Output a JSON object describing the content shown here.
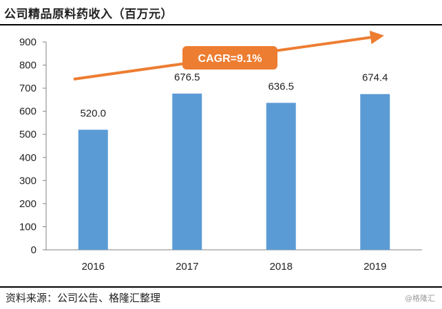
{
  "title": "公司精品原料药收入（百万元）",
  "source": "资料来源：公司公告、格隆汇整理",
  "watermark": "@格隆汇",
  "colors": {
    "bar": "#5b9bd5",
    "arrow": "#ed7d31",
    "badge": "#ed7d31",
    "badge_text": "#ffffff",
    "text": "#222222"
  },
  "annotation": {
    "label": "CAGR=9.1%"
  },
  "chart_data": {
    "type": "bar",
    "title": "公司精品原料药收入（百万元）",
    "categories": [
      "2016",
      "2017",
      "2018",
      "2019"
    ],
    "values": [
      520.0,
      676.5,
      636.5,
      674.4
    ],
    "value_labels": [
      "520.0",
      "676.5",
      "636.5",
      "674.4"
    ],
    "ylim": [
      0,
      900
    ],
    "yticks": [
      0,
      100,
      200,
      300,
      400,
      500,
      600,
      700,
      800,
      900
    ],
    "grid": false,
    "legend": "none"
  }
}
